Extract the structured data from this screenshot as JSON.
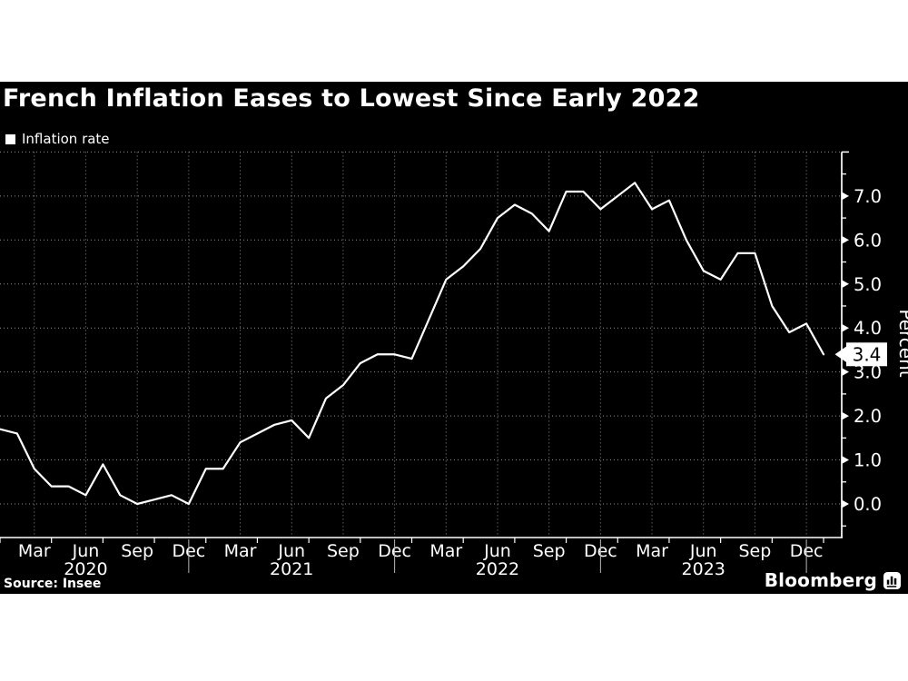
{
  "header": {
    "title": "French Inflation Eases to Lowest Since Early 2022"
  },
  "legend": {
    "label": "Inflation rate"
  },
  "footer": {
    "source": "Source: Insee",
    "brand": "Bloomberg"
  },
  "colors": {
    "background": "#000000",
    "foreground": "#ffffff",
    "grid": "#8f8f8f"
  },
  "chart_data": {
    "type": "line",
    "title": "French Inflation Eases to Lowest Since Early 2022",
    "legend": [
      "Inflation rate"
    ],
    "xlabel": "",
    "ylabel": "Percent",
    "ylim": [
      0,
      8
    ],
    "y_major_ticks": [
      0,
      1,
      2,
      3,
      4,
      5,
      6,
      7
    ],
    "grid": "dotted",
    "legend_position": "top-left",
    "axis_side": "right",
    "x_months": [
      "Jan 2020",
      "Feb 2020",
      "Mar 2020",
      "Apr 2020",
      "May 2020",
      "Jun 2020",
      "Jul 2020",
      "Aug 2020",
      "Sep 2020",
      "Oct 2020",
      "Nov 2020",
      "Dec 2020",
      "Jan 2021",
      "Feb 2021",
      "Mar 2021",
      "Apr 2021",
      "May 2021",
      "Jun 2021",
      "Jul 2021",
      "Aug 2021",
      "Sep 2021",
      "Oct 2021",
      "Nov 2021",
      "Dec 2021",
      "Jan 2022",
      "Feb 2022",
      "Mar 2022",
      "Apr 2022",
      "May 2022",
      "Jun 2022",
      "Jul 2022",
      "Aug 2022",
      "Sep 2022",
      "Oct 2022",
      "Nov 2022",
      "Dec 2022",
      "Jan 2023",
      "Feb 2023",
      "Mar 2023",
      "Apr 2023",
      "May 2023",
      "Jun 2023",
      "Jul 2023",
      "Aug 2023",
      "Sep 2023",
      "Oct 2023",
      "Nov 2023",
      "Dec 2023",
      "Jan 2024"
    ],
    "values": [
      1.7,
      1.6,
      0.8,
      0.4,
      0.4,
      0.2,
      0.9,
      0.2,
      0.0,
      0.1,
      0.2,
      0.0,
      0.8,
      0.8,
      1.4,
      1.6,
      1.8,
      1.9,
      1.5,
      2.4,
      2.7,
      3.2,
      3.4,
      3.4,
      3.3,
      4.2,
      5.1,
      5.4,
      5.8,
      6.5,
      6.8,
      6.6,
      6.2,
      7.1,
      7.1,
      6.7,
      7.0,
      7.3,
      6.7,
      6.9,
      6.0,
      5.3,
      5.1,
      5.7,
      5.7,
      4.5,
      3.9,
      4.1,
      3.4
    ],
    "end_label": "3.4",
    "quarter_label_months": [
      "Mar",
      "Jun",
      "Sep",
      "Dec"
    ],
    "year_labels": [
      {
        "label": "2020",
        "month_index": 5
      },
      {
        "label": "2021",
        "month_index": 17
      },
      {
        "label": "2022",
        "month_index": 29
      },
      {
        "label": "2023",
        "month_index": 41
      }
    ],
    "year_separator_month_indices": [
      11,
      23,
      35,
      47
    ]
  }
}
